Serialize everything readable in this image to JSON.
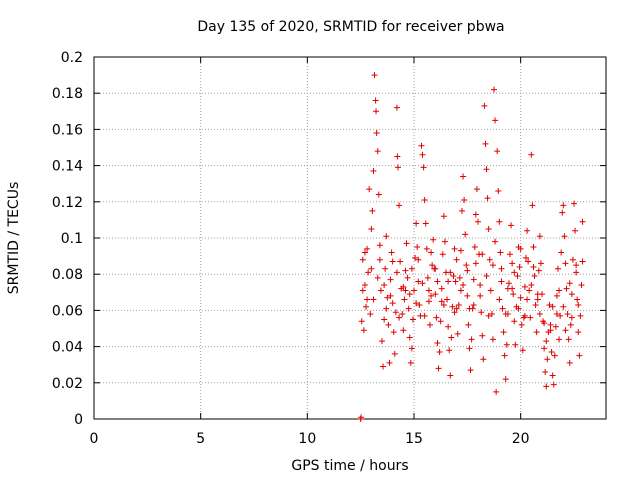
{
  "chart_data": {
    "type": "scatter",
    "title": "Day 135 of 2020, SRMTID for receiver pbwa",
    "xlabel": "GPS time / hours",
    "ylabel": "SRMTID / TECUs",
    "xlim": [
      0,
      24
    ],
    "ylim": [
      0,
      0.2
    ],
    "x_ticks": [
      "0",
      "5",
      "10",
      "15",
      "20"
    ],
    "x_tick_values": [
      0,
      5,
      10,
      15,
      20
    ],
    "y_ticks": [
      "0",
      "0.02",
      "0.04",
      "0.06",
      "0.08",
      "0.1",
      "0.12",
      "0.14",
      "0.16",
      "0.18",
      "0.2"
    ],
    "y_tick_values": [
      0,
      0.02,
      0.04,
      0.06,
      0.08,
      0.1,
      0.12,
      0.14,
      0.16,
      0.18,
      0.2
    ],
    "grid": true,
    "marker": "+",
    "color": "#e00000",
    "series": [
      {
        "values": [
          [
            12.5,
            0.0
          ],
          [
            12.52,
            0.001
          ],
          [
            12.55,
            0.054
          ],
          [
            12.6,
            0.088
          ],
          [
            12.65,
            0.049
          ],
          [
            12.7,
            0.074
          ],
          [
            12.75,
            0.062
          ],
          [
            12.8,
            0.094
          ],
          [
            12.85,
            0.081
          ],
          [
            12.9,
            0.127
          ],
          [
            12.95,
            0.058
          ],
          [
            13.0,
            0.105
          ],
          [
            13.05,
            0.115
          ],
          [
            13.1,
            0.137
          ],
          [
            13.15,
            0.19
          ],
          [
            13.2,
            0.176
          ],
          [
            13.22,
            0.17
          ],
          [
            13.25,
            0.158
          ],
          [
            13.3,
            0.148
          ],
          [
            13.35,
            0.124
          ],
          [
            13.4,
            0.096
          ],
          [
            13.45,
            0.071
          ],
          [
            13.5,
            0.043
          ],
          [
            13.55,
            0.029
          ],
          [
            13.6,
            0.055
          ],
          [
            13.65,
            0.083
          ],
          [
            13.7,
            0.101
          ],
          [
            13.75,
            0.067
          ],
          [
            13.8,
            0.052
          ],
          [
            13.85,
            0.031
          ],
          [
            13.9,
            0.077
          ],
          [
            13.95,
            0.092
          ],
          [
            14.0,
            0.064
          ],
          [
            14.05,
            0.048
          ],
          [
            14.1,
            0.036
          ],
          [
            14.15,
            0.059
          ],
          [
            14.2,
            0.172
          ],
          [
            14.22,
            0.145
          ],
          [
            14.25,
            0.139
          ],
          [
            14.3,
            0.118
          ],
          [
            14.35,
            0.087
          ],
          [
            14.4,
            0.072
          ],
          [
            14.45,
            0.058
          ],
          [
            14.5,
            0.049
          ],
          [
            14.55,
            0.066
          ],
          [
            14.6,
            0.082
          ],
          [
            14.65,
            0.097
          ],
          [
            14.7,
            0.078
          ],
          [
            14.75,
            0.061
          ],
          [
            14.8,
            0.045
          ],
          [
            14.85,
            0.031
          ],
          [
            14.9,
            0.039
          ],
          [
            14.95,
            0.055
          ],
          [
            15.0,
            0.071
          ],
          [
            15.05,
            0.089
          ],
          [
            15.1,
            0.108
          ],
          [
            15.15,
            0.095
          ],
          [
            15.2,
            0.076
          ],
          [
            15.25,
            0.063
          ],
          [
            15.3,
            0.057
          ],
          [
            15.35,
            0.151
          ],
          [
            15.4,
            0.146
          ],
          [
            15.45,
            0.139
          ],
          [
            15.5,
            0.121
          ],
          [
            15.55,
            0.108
          ],
          [
            15.6,
            0.094
          ],
          [
            15.65,
            0.078
          ],
          [
            15.7,
            0.065
          ],
          [
            15.75,
            0.052
          ],
          [
            15.8,
            0.068
          ],
          [
            15.85,
            0.085
          ],
          [
            15.9,
            0.099
          ],
          [
            15.95,
            0.083
          ],
          [
            16.0,
            0.069
          ],
          [
            16.05,
            0.056
          ],
          [
            16.1,
            0.042
          ],
          [
            16.15,
            0.028
          ],
          [
            16.2,
            0.037
          ],
          [
            16.25,
            0.054
          ],
          [
            16.3,
            0.072
          ],
          [
            16.35,
            0.091
          ],
          [
            16.4,
            0.112
          ],
          [
            16.45,
            0.098
          ],
          [
            16.5,
            0.081
          ],
          [
            16.55,
            0.066
          ],
          [
            16.6,
            0.051
          ],
          [
            16.65,
            0.038
          ],
          [
            16.7,
            0.024
          ],
          [
            16.75,
            0.045
          ],
          [
            16.8,
            0.062
          ],
          [
            16.85,
            0.079
          ],
          [
            16.9,
            0.094
          ],
          [
            16.95,
            0.076
          ],
          [
            17.0,
            0.061
          ],
          [
            17.05,
            0.047
          ],
          [
            17.1,
            0.063
          ],
          [
            17.15,
            0.078
          ],
          [
            17.2,
            0.093
          ],
          [
            17.25,
            0.115
          ],
          [
            17.3,
            0.134
          ],
          [
            17.35,
            0.121
          ],
          [
            17.4,
            0.102
          ],
          [
            17.45,
            0.085
          ],
          [
            17.5,
            0.068
          ],
          [
            17.55,
            0.052
          ],
          [
            17.6,
            0.039
          ],
          [
            17.65,
            0.027
          ],
          [
            17.7,
            0.044
          ],
          [
            17.75,
            0.061
          ],
          [
            17.8,
            0.077
          ],
          [
            17.85,
            0.095
          ],
          [
            17.9,
            0.113
          ],
          [
            17.95,
            0.127
          ],
          [
            18.0,
            0.109
          ],
          [
            18.05,
            0.091
          ],
          [
            18.1,
            0.074
          ],
          [
            18.15,
            0.059
          ],
          [
            18.2,
            0.046
          ],
          [
            18.25,
            0.033
          ],
          [
            18.3,
            0.173
          ],
          [
            18.35,
            0.152
          ],
          [
            18.4,
            0.138
          ],
          [
            18.45,
            0.122
          ],
          [
            18.5,
            0.105
          ],
          [
            18.55,
            0.088
          ],
          [
            18.6,
            0.071
          ],
          [
            18.65,
            0.058
          ],
          [
            18.7,
            0.044
          ],
          [
            18.75,
            0.182
          ],
          [
            18.8,
            0.165
          ],
          [
            18.85,
            0.015
          ],
          [
            18.9,
            0.148
          ],
          [
            18.95,
            0.126
          ],
          [
            19.0,
            0.109
          ],
          [
            19.05,
            0.092
          ],
          [
            19.1,
            0.076
          ],
          [
            19.15,
            0.061
          ],
          [
            19.2,
            0.048
          ],
          [
            19.25,
            0.035
          ],
          [
            19.3,
            0.022
          ],
          [
            19.35,
            0.041
          ],
          [
            19.4,
            0.058
          ],
          [
            19.45,
            0.075
          ],
          [
            19.5,
            0.091
          ],
          [
            19.55,
            0.107
          ],
          [
            19.6,
            0.086
          ],
          [
            19.65,
            0.069
          ],
          [
            19.7,
            0.054
          ],
          [
            19.75,
            0.041
          ],
          [
            19.8,
            0.062
          ],
          [
            19.85,
            0.079
          ],
          [
            19.9,
            0.095
          ],
          [
            19.95,
            0.084
          ],
          [
            20.0,
            0.067
          ],
          [
            20.05,
            0.052
          ],
          [
            20.1,
            0.038
          ],
          [
            20.15,
            0.056
          ],
          [
            20.2,
            0.073
          ],
          [
            20.25,
            0.089
          ],
          [
            20.3,
            0.104
          ],
          [
            20.35,
            0.087
          ],
          [
            20.4,
            0.071
          ],
          [
            20.45,
            0.056
          ],
          [
            20.5,
            0.146
          ],
          [
            20.55,
            0.118
          ],
          [
            20.6,
            0.095
          ],
          [
            20.65,
            0.079
          ],
          [
            20.7,
            0.063
          ],
          [
            20.75,
            0.048
          ],
          [
            20.8,
            0.066
          ],
          [
            20.85,
            0.082
          ],
          [
            20.9,
            0.101
          ],
          [
            20.95,
            0.086
          ],
          [
            21.0,
            0.069
          ],
          [
            21.05,
            0.054
          ],
          [
            21.1,
            0.039
          ],
          [
            21.15,
            0.026
          ],
          [
            21.2,
            0.018
          ],
          [
            21.25,
            0.033
          ],
          [
            21.3,
            0.048
          ],
          [
            21.35,
            0.063
          ],
          [
            21.4,
            0.052
          ],
          [
            21.45,
            0.037
          ],
          [
            21.5,
            0.024
          ],
          [
            21.55,
            0.019
          ],
          [
            21.6,
            0.035
          ],
          [
            21.65,
            0.051
          ],
          [
            21.7,
            0.068
          ],
          [
            21.75,
            0.083
          ],
          [
            21.8,
            0.071
          ],
          [
            21.85,
            0.057
          ],
          [
            21.9,
            0.092
          ],
          [
            21.95,
            0.114
          ],
          [
            22.0,
            0.118
          ],
          [
            22.05,
            0.101
          ],
          [
            22.1,
            0.086
          ],
          [
            22.15,
            0.072
          ],
          [
            22.2,
            0.058
          ],
          [
            22.25,
            0.044
          ],
          [
            22.3,
            0.031
          ],
          [
            22.35,
            0.052
          ],
          [
            22.4,
            0.069
          ],
          [
            22.45,
            0.088
          ],
          [
            22.5,
            0.119
          ],
          [
            22.55,
            0.104
          ],
          [
            22.6,
            0.085
          ],
          [
            22.65,
            0.066
          ],
          [
            22.7,
            0.048
          ],
          [
            22.75,
            0.035
          ],
          [
            22.8,
            0.057
          ],
          [
            22.85,
            0.074
          ],
          [
            22.9,
            0.109
          ],
          [
            12.6,
            0.071
          ],
          [
            12.8,
            0.066
          ],
          [
            13.0,
            0.083
          ],
          [
            13.3,
            0.078
          ],
          [
            13.6,
            0.074
          ],
          [
            13.9,
            0.068
          ],
          [
            14.2,
            0.081
          ],
          [
            14.5,
            0.073
          ],
          [
            14.8,
            0.069
          ],
          [
            15.1,
            0.064
          ],
          [
            15.4,
            0.075
          ],
          [
            15.7,
            0.071
          ],
          [
            16.0,
            0.083
          ],
          [
            16.3,
            0.065
          ],
          [
            16.6,
            0.076
          ],
          [
            16.9,
            0.059
          ],
          [
            17.2,
            0.071
          ],
          [
            17.5,
            0.082
          ],
          [
            17.8,
            0.063
          ],
          [
            18.1,
            0.068
          ],
          [
            18.4,
            0.079
          ],
          [
            18.7,
            0.085
          ],
          [
            19.0,
            0.066
          ],
          [
            19.3,
            0.058
          ],
          [
            19.6,
            0.072
          ],
          [
            19.9,
            0.061
          ],
          [
            20.2,
            0.057
          ],
          [
            20.5,
            0.074
          ],
          [
            20.8,
            0.069
          ],
          [
            21.1,
            0.053
          ],
          [
            21.4,
            0.049
          ],
          [
            21.7,
            0.058
          ],
          [
            22.0,
            0.062
          ],
          [
            22.3,
            0.075
          ],
          [
            22.6,
            0.081
          ],
          [
            22.9,
            0.087
          ],
          [
            12.7,
            0.092
          ],
          [
            13.1,
            0.066
          ],
          [
            13.4,
            0.088
          ],
          [
            13.7,
            0.061
          ],
          [
            14.0,
            0.087
          ],
          [
            14.3,
            0.056
          ],
          [
            14.6,
            0.071
          ],
          [
            14.9,
            0.083
          ],
          [
            15.2,
            0.088
          ],
          [
            15.5,
            0.057
          ],
          [
            15.8,
            0.092
          ],
          [
            16.1,
            0.076
          ],
          [
            16.4,
            0.063
          ],
          [
            16.7,
            0.081
          ],
          [
            17.0,
            0.088
          ],
          [
            17.3,
            0.074
          ],
          [
            17.6,
            0.061
          ],
          [
            17.9,
            0.086
          ],
          [
            18.2,
            0.091
          ],
          [
            18.5,
            0.057
          ],
          [
            18.8,
            0.098
          ],
          [
            19.1,
            0.083
          ],
          [
            19.4,
            0.072
          ],
          [
            19.7,
            0.081
          ],
          [
            20.0,
            0.094
          ],
          [
            20.3,
            0.066
          ],
          [
            20.6,
            0.084
          ],
          [
            20.9,
            0.058
          ],
          [
            21.2,
            0.043
          ],
          [
            21.5,
            0.062
          ],
          [
            21.8,
            0.044
          ],
          [
            22.1,
            0.049
          ],
          [
            22.4,
            0.056
          ],
          [
            22.7,
            0.063
          ]
        ]
      }
    ]
  }
}
